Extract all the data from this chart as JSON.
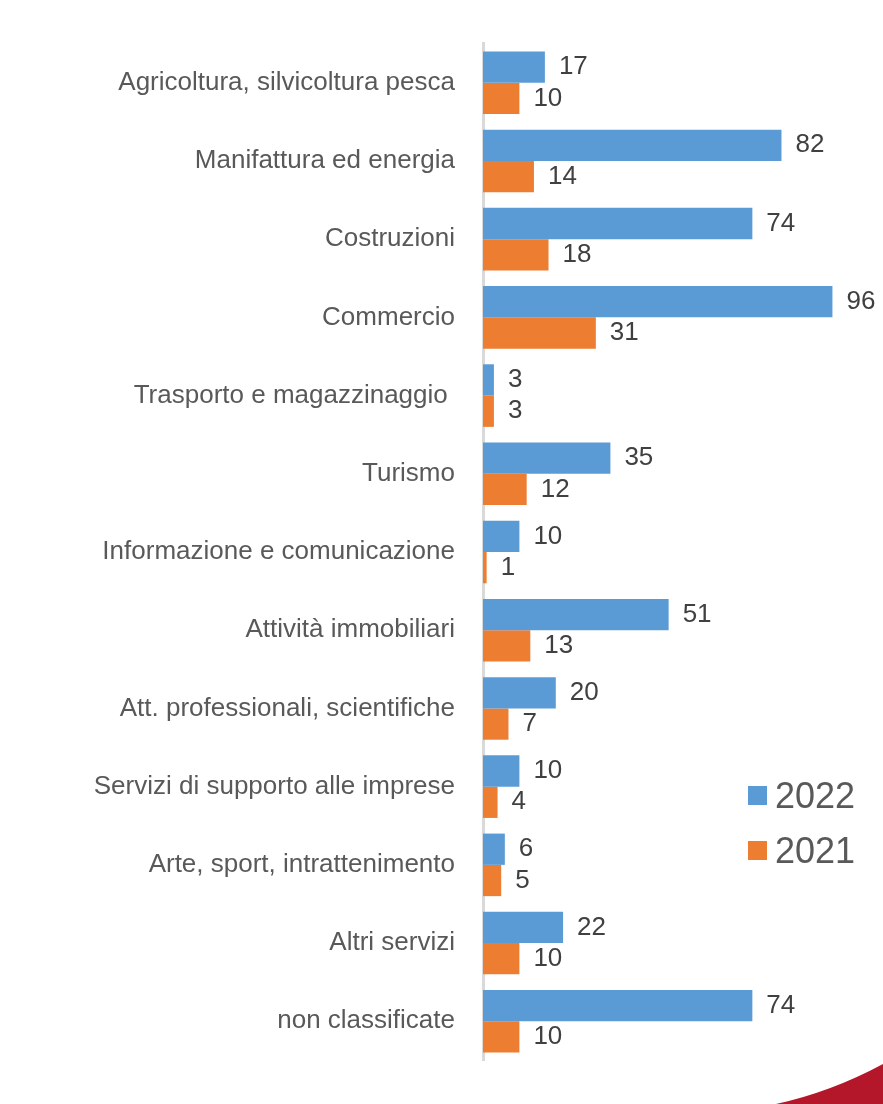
{
  "chart_data": {
    "type": "bar",
    "orientation": "horizontal",
    "categories": [
      "Agricoltura, silvicoltura pesca",
      "Manifattura ed energia",
      "Costruzioni",
      "Commercio",
      "Trasporto e magazzinaggio ",
      "Turismo",
      "Informazione e comunicazione",
      "Attività immobiliari",
      "Att. professionali, scientifiche",
      "Servizi di supporto alle imprese",
      "Arte, sport, intrattenimento",
      "Altri servizi",
      "non classificate"
    ],
    "series": [
      {
        "name": "2022",
        "color": "#5b9bd5",
        "values": [
          17,
          82,
          74,
          96,
          3,
          35,
          10,
          51,
          20,
          10,
          6,
          22,
          74
        ]
      },
      {
        "name": "2021",
        "color": "#ed7d31",
        "values": [
          10,
          14,
          18,
          31,
          3,
          12,
          1,
          13,
          7,
          4,
          5,
          10,
          10
        ]
      }
    ],
    "data_labels": true,
    "legend": "right",
    "tick_labels": "y"
  }
}
